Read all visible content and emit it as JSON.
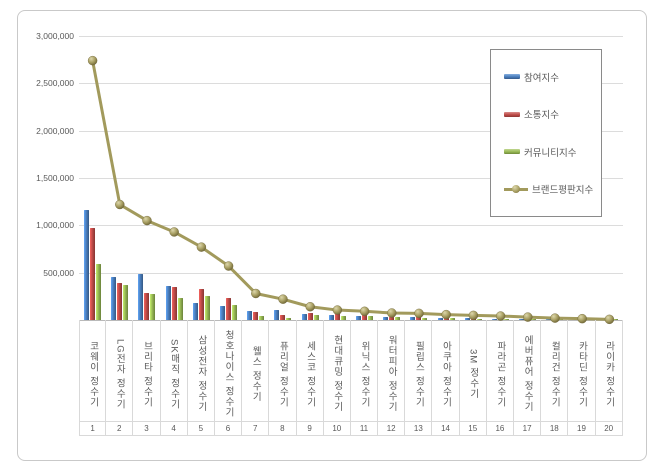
{
  "chart_data": {
    "type": "bar+line combo",
    "title": "",
    "xlabel": "",
    "ylabel": "",
    "ylim": [
      0,
      3000000
    ],
    "y_tick_step": 500000,
    "y_tick_labels": [
      "3,000,000",
      "2,500,000",
      "2,000,000",
      "1,500,000",
      "1,000,000",
      "500,000"
    ],
    "grid": true,
    "legend_position": "top-right",
    "categories": [
      "코웨이 정수기",
      "LG전자 정수기",
      "브리타 정수기",
      "SK매직 정수기",
      "삼성전자 정수기",
      "청호나이스 정수기",
      "웰스 정수기",
      "퓨리얼 정수기",
      "세스코 정수기",
      "현대큐밍 정수기",
      "위닉스 정수기",
      "워터피아 정수기",
      "필립스 정수기",
      "아쿠아 정수기",
      "3M 정수기",
      "파라곤 정수기",
      "에버퓨어 정수기",
      "컬리건 정수기",
      "카타딘 정수기",
      "라이카 정수기"
    ],
    "ranks": [
      "1",
      "2",
      "3",
      "4",
      "5",
      "6",
      "7",
      "8",
      "9",
      "10",
      "11",
      "12",
      "13",
      "14",
      "15",
      "16",
      "17",
      "18",
      "19",
      "20"
    ],
    "series": [
      {
        "name": "참여지수",
        "type": "bar",
        "color": "#4a7ebd",
        "values": [
          1160000,
          450000,
          485000,
          355000,
          180000,
          152000,
          92000,
          110000,
          63000,
          56000,
          46000,
          34000,
          28000,
          22000,
          18000,
          15000,
          12000,
          9000,
          7000,
          5000
        ]
      },
      {
        "name": "소통지수",
        "type": "bar",
        "color": "#be4b48",
        "values": [
          970000,
          390000,
          290000,
          345000,
          330000,
          233000,
          81000,
          56000,
          74000,
          70000,
          49000,
          36000,
          38000,
          26000,
          22000,
          18000,
          14000,
          10000,
          8000,
          6000
        ]
      },
      {
        "name": "커뮤니티지수",
        "type": "bar",
        "color": "#98b954",
        "values": [
          590000,
          365000,
          280000,
          235000,
          250000,
          163000,
          46000,
          25000,
          49000,
          46000,
          42000,
          28000,
          17000,
          18000,
          15000,
          12000,
          10000,
          7000,
          5000,
          4000
        ]
      },
      {
        "name": "브랜드평판지수",
        "type": "line",
        "color": "#a29a5c",
        "values": [
          2740000,
          1220000,
          1050000,
          930000,
          770000,
          570000,
          280000,
          220000,
          140000,
          105000,
          92000,
          74000,
          70000,
          57000,
          49000,
          42000,
          31000,
          20000,
          14000,
          7000
        ]
      }
    ]
  }
}
